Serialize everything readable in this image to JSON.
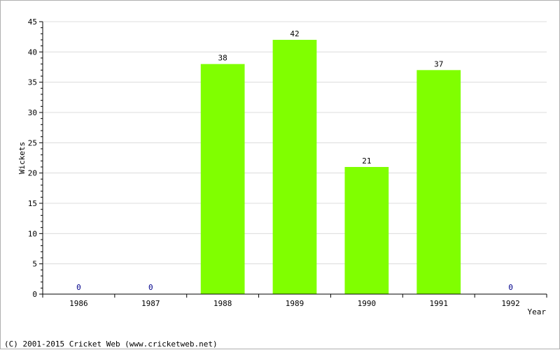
{
  "chart_data": {
    "type": "bar",
    "categories": [
      "1986",
      "1987",
      "1988",
      "1989",
      "1990",
      "1991",
      "1992"
    ],
    "values": [
      0,
      0,
      38,
      42,
      21,
      37,
      0
    ],
    "value_labels": [
      "0",
      "0",
      "38",
      "42",
      "21",
      "37",
      "0"
    ],
    "xlabel": "Year",
    "ylabel": "Wickets",
    "ylim": [
      0,
      45
    ],
    "yticks": [
      0,
      5,
      10,
      15,
      20,
      25,
      30,
      35,
      40,
      45
    ],
    "ytick_labels": [
      "0",
      "5",
      "10",
      "15",
      "20",
      "25",
      "30",
      "35",
      "40",
      "45"
    ],
    "grid": true,
    "bar_color": "#80ff00",
    "zero_label_color": "#00008b",
    "label_color": "#000000"
  },
  "footer": {
    "copyright": "(C) 2001-2015 Cricket Web (www.cricketweb.net)"
  }
}
